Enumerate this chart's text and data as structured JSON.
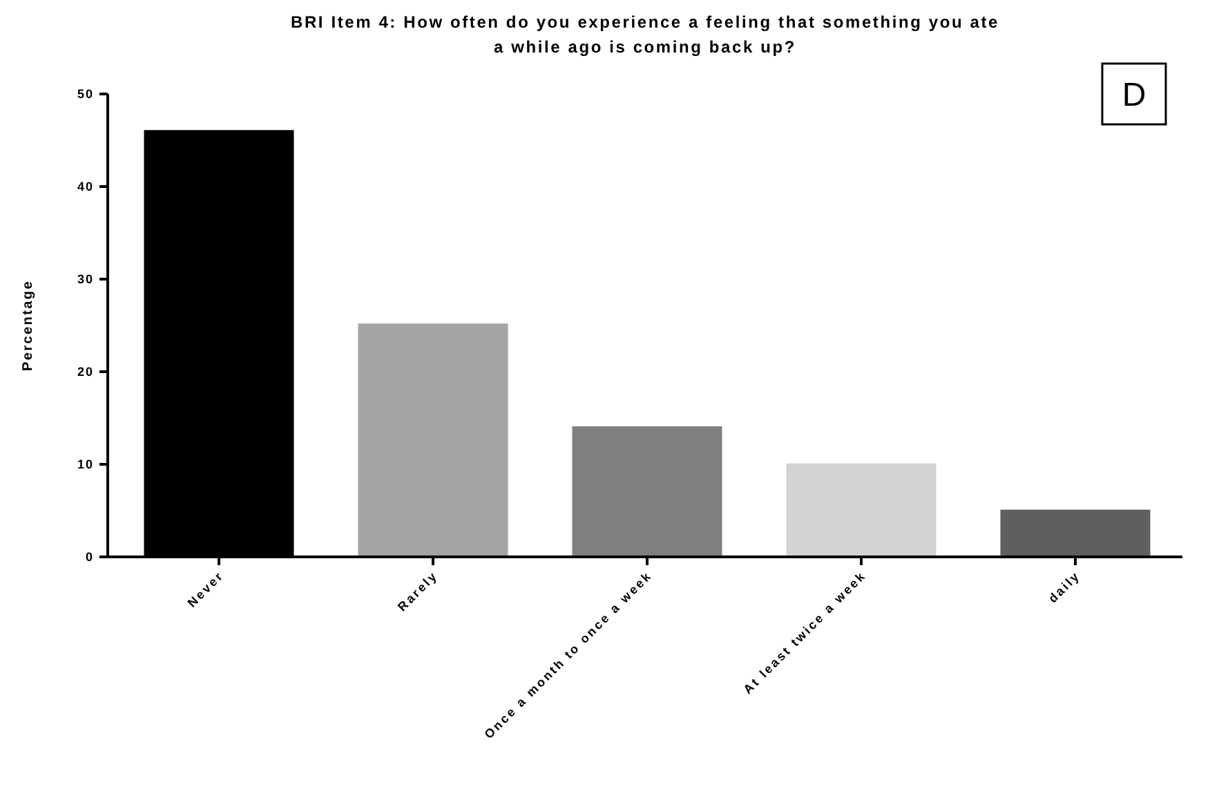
{
  "chart_data": {
    "type": "bar",
    "title": "BRI Item 4: How often do you experience a feeling that something you ate a while ago is coming back up?",
    "ylabel": "Percentage",
    "categories": [
      "Never",
      "Rarely",
      "Once a month to once a week",
      "At least twice a week",
      "daily"
    ],
    "values": [
      46.1,
      25.2,
      14.1,
      10.1,
      5.1
    ],
    "colors": [
      "#000000",
      "#a3a3a6",
      "#7f7f7f",
      "#d3d3d3",
      "#5f5f5f"
    ],
    "ylim": [
      0,
      50
    ],
    "yticks": [
      0,
      10,
      20,
      30,
      40,
      50
    ],
    "grid": false,
    "annotations": [
      "D"
    ]
  }
}
